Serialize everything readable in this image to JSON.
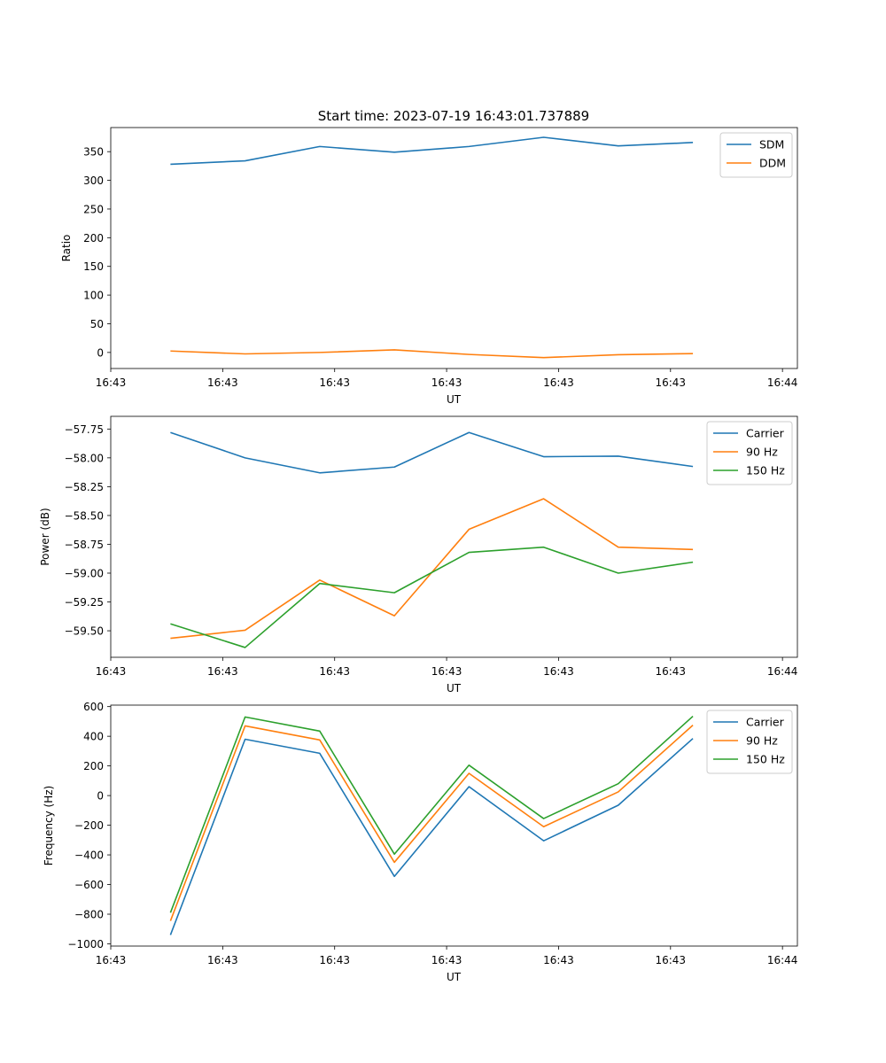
{
  "figure_title": "Start time: 2023-07-19 16:43:01.737889",
  "colors": {
    "blue": "#1f77b4",
    "orange": "#ff7f0e",
    "green": "#2ca02c"
  },
  "chart_data": [
    {
      "type": "line",
      "title": "Start time: 2023-07-19 16:43:01.737889",
      "xlabel": "UT",
      "ylabel": "Ratio",
      "x": [
        1,
        2,
        3,
        4,
        5,
        6,
        7,
        8
      ],
      "xlim": [
        0.2,
        9.4
      ],
      "x_ticks": [
        0.2,
        1.7,
        3.2,
        4.7,
        6.2,
        7.7,
        9.2
      ],
      "x_tick_labels": [
        "16:43",
        "16:43",
        "16:43",
        "16:43",
        "16:43",
        "16:43",
        "16:44"
      ],
      "ylim": [
        -28,
        392
      ],
      "y_ticks": [
        0,
        50,
        100,
        150,
        200,
        250,
        300,
        350
      ],
      "y_tick_labels": [
        "0",
        "50",
        "100",
        "150",
        "200",
        "250",
        "300",
        "350"
      ],
      "legend_position": "top-right",
      "series": [
        {
          "name": "SDM",
          "color": "#1f77b4",
          "values": [
            328,
            334,
            359,
            349,
            359,
            375,
            360,
            366
          ]
        },
        {
          "name": "DDM",
          "color": "#ff7f0e",
          "values": [
            2.5,
            -2.5,
            0,
            4.5,
            -3.5,
            -9,
            -4,
            -2
          ]
        }
      ]
    },
    {
      "type": "line",
      "title": "",
      "xlabel": "UT",
      "ylabel": "Power (dB)",
      "x": [
        1,
        2,
        3,
        4,
        5,
        6,
        7,
        8
      ],
      "xlim": [
        0.2,
        9.4
      ],
      "x_ticks": [
        0.2,
        1.7,
        3.2,
        4.7,
        6.2,
        7.7,
        9.2
      ],
      "x_tick_labels": [
        "16:43",
        "16:43",
        "16:43",
        "16:43",
        "16:43",
        "16:43",
        "16:44"
      ],
      "ylim": [
        -59.73,
        -57.64
      ],
      "y_ticks": [
        -59.5,
        -59.25,
        -59.0,
        -58.75,
        -58.5,
        -58.25,
        -58.0,
        -57.75
      ],
      "y_tick_labels": [
        "−59.50",
        "−59.25",
        "−59.00",
        "−58.75",
        "−58.50",
        "−58.25",
        "−58.00",
        "−57.75"
      ],
      "legend_position": "top-right",
      "series": [
        {
          "name": "Carrier",
          "color": "#1f77b4",
          "values": [
            -57.78,
            -58.0,
            -58.13,
            -58.08,
            -57.78,
            -57.99,
            -57.985,
            -58.075
          ]
        },
        {
          "name": "90 Hz",
          "color": "#ff7f0e",
          "values": [
            -59.565,
            -59.495,
            -59.06,
            -59.37,
            -58.62,
            -58.355,
            -58.775,
            -58.795
          ]
        },
        {
          "name": "150 Hz",
          "color": "#2ca02c",
          "values": [
            -59.44,
            -59.645,
            -59.09,
            -59.17,
            -58.82,
            -58.775,
            -59.0,
            -58.905
          ]
        }
      ]
    },
    {
      "type": "line",
      "title": "",
      "xlabel": "UT",
      "ylabel": "Frequency (Hz)",
      "x": [
        1,
        2,
        3,
        4,
        5,
        6,
        7,
        8
      ],
      "xlim": [
        0.2,
        9.4
      ],
      "x_ticks": [
        0.2,
        1.7,
        3.2,
        4.7,
        6.2,
        7.7,
        9.2
      ],
      "x_tick_labels": [
        "16:43",
        "16:43",
        "16:43",
        "16:43",
        "16:43",
        "16:43",
        "16:44"
      ],
      "ylim": [
        -1015,
        610
      ],
      "y_ticks": [
        -1000,
        -800,
        -600,
        -400,
        -200,
        0,
        200,
        400,
        600
      ],
      "y_tick_labels": [
        "−1000",
        "−800",
        "−600",
        "−400",
        "−200",
        "0",
        "200",
        "400",
        "600"
      ],
      "legend_position": "top-right",
      "series": [
        {
          "name": "Carrier",
          "color": "#1f77b4",
          "values": [
            -940,
            380,
            285,
            -545,
            60,
            -305,
            -65,
            385
          ]
        },
        {
          "name": "90 Hz",
          "color": "#ff7f0e",
          "values": [
            -845,
            470,
            375,
            -450,
            150,
            -210,
            25,
            475
          ]
        },
        {
          "name": "150 Hz",
          "color": "#2ca02c",
          "values": [
            -790,
            530,
            435,
            -395,
            205,
            -155,
            80,
            535
          ]
        }
      ]
    }
  ]
}
